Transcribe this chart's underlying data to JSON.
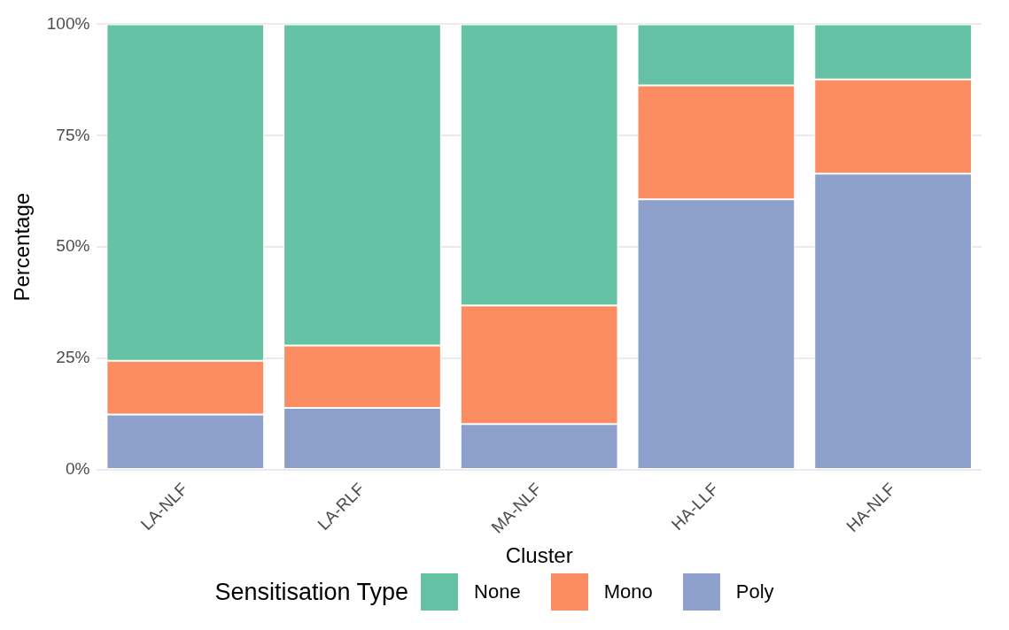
{
  "chart_data": {
    "type": "bar",
    "stacked": true,
    "xlabel": "Cluster",
    "ylabel": "Percentage",
    "legend_title": "Sensitisation Type",
    "legend": "bottom",
    "grid": "y",
    "categories": [
      "LA-NLF",
      "LA-RLF",
      "MA-NLF",
      "HA-LLF",
      "HA-NLF"
    ],
    "ylim": [
      0,
      100
    ],
    "yticks": [
      {
        "value": 0,
        "label": "0%"
      },
      {
        "value": 25,
        "label": "25%"
      },
      {
        "value": 50,
        "label": "50%"
      },
      {
        "value": 75,
        "label": "75%"
      },
      {
        "value": 100,
        "label": "100%"
      }
    ],
    "series": [
      {
        "name": "Poly",
        "color": "#8da0cb",
        "values": [
          12.4,
          13.9,
          10.3,
          60.7,
          66.5
        ]
      },
      {
        "name": "Mono",
        "color": "#fc8d62",
        "values": [
          12.1,
          14.0,
          26.6,
          25.6,
          21.1
        ]
      },
      {
        "name": "None",
        "color": "#66c2a5",
        "values": [
          75.5,
          72.1,
          63.1,
          13.7,
          12.4
        ]
      }
    ]
  }
}
